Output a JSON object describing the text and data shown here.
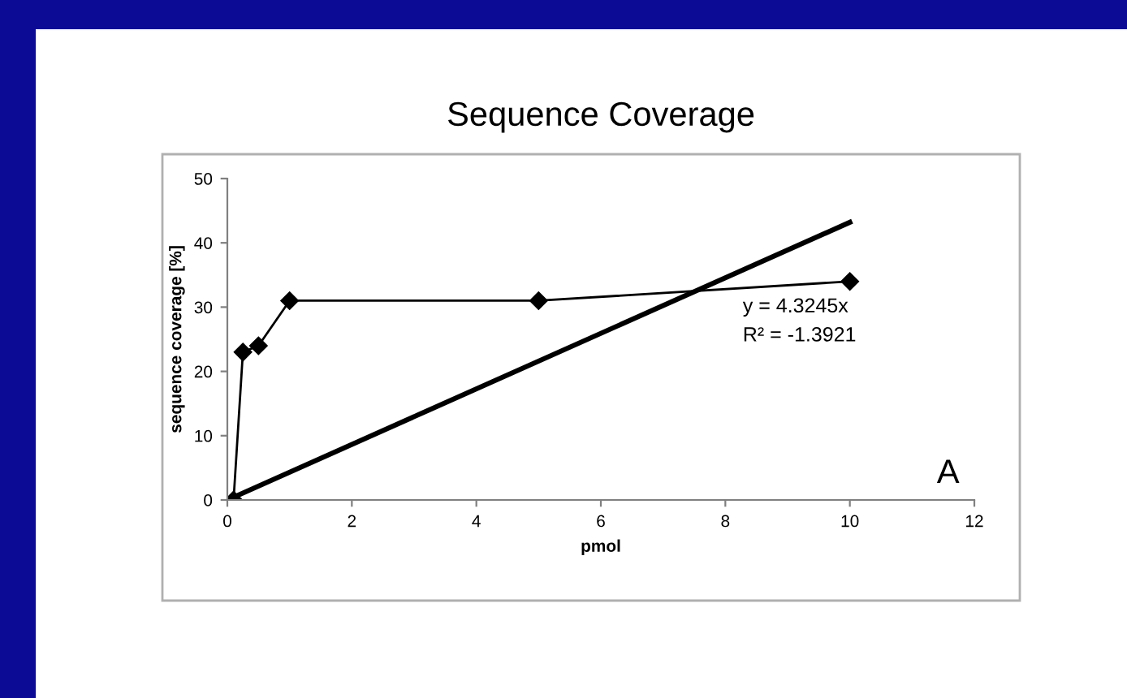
{
  "chart_data": {
    "type": "line",
    "title": "Sequence Coverage",
    "xlabel": "pmol",
    "ylabel": "sequence coverage [%]",
    "series": [
      {
        "color": "#000000",
        "marker": "diamond",
        "x": [
          0.1,
          0.25,
          0.5,
          1,
          5,
          10
        ],
        "values": [
          0,
          23,
          24,
          31,
          31,
          34
        ]
      },
      {
        "color": "#000000",
        "marker": "none",
        "x": [
          0,
          10
        ],
        "values": [
          0,
          43.2
        ]
      }
    ],
    "annotations": [
      "y = 4.3245x",
      "R² = -1.3921",
      "A"
    ],
    "xlim": [
      0,
      12
    ],
    "xticks": [
      0,
      2,
      4,
      6,
      8,
      10,
      12
    ],
    "ylim": [
      0,
      50
    ],
    "yticks": [
      0,
      10,
      20,
      30,
      40,
      50
    ],
    "grid": false,
    "legend": false
  }
}
